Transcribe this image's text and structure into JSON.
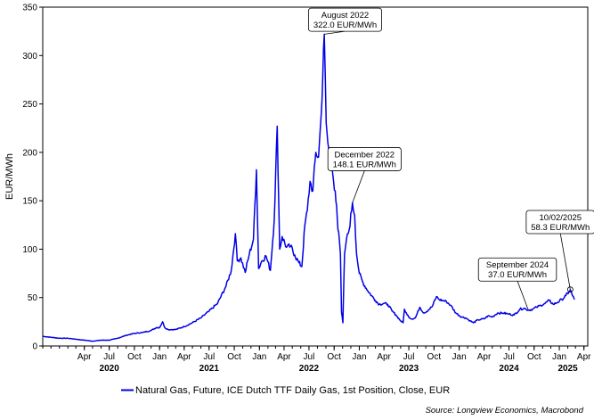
{
  "chart_data": {
    "type": "line",
    "title": "",
    "ylabel": "EUR/MWh",
    "xlabel": "",
    "ylim": [
      0,
      350
    ],
    "yticks": [
      0,
      50,
      100,
      150,
      200,
      250,
      300,
      350
    ],
    "x_range": [
      "2019-11-01",
      "2025-04-15"
    ],
    "month_ticks": [
      {
        "date": "2020-04-01",
        "label": "Apr"
      },
      {
        "date": "2020-07-01",
        "label": "Jul"
      },
      {
        "date": "2020-10-01",
        "label": "Oct"
      },
      {
        "date": "2021-01-01",
        "label": "Jan"
      },
      {
        "date": "2021-04-01",
        "label": "Apr"
      },
      {
        "date": "2021-07-01",
        "label": "Jul"
      },
      {
        "date": "2021-10-01",
        "label": "Oct"
      },
      {
        "date": "2022-01-01",
        "label": "Jan"
      },
      {
        "date": "2022-04-01",
        "label": "Apr"
      },
      {
        "date": "2022-07-01",
        "label": "Jul"
      },
      {
        "date": "2022-10-01",
        "label": "Oct"
      },
      {
        "date": "2023-01-01",
        "label": "Jan"
      },
      {
        "date": "2023-04-01",
        "label": "Apr"
      },
      {
        "date": "2023-07-01",
        "label": "Jul"
      },
      {
        "date": "2023-10-01",
        "label": "Oct"
      },
      {
        "date": "2024-01-01",
        "label": "Jan"
      },
      {
        "date": "2024-04-01",
        "label": "Apr"
      },
      {
        "date": "2024-07-01",
        "label": "Jul"
      },
      {
        "date": "2024-10-01",
        "label": "Oct"
      },
      {
        "date": "2025-01-01",
        "label": "Jan"
      },
      {
        "date": "2025-04-01",
        "label": "Apr"
      }
    ],
    "year_labels": [
      {
        "date": "2020-07-01",
        "label": "2020"
      },
      {
        "date": "2021-07-01",
        "label": "2021"
      },
      {
        "date": "2022-07-01",
        "label": "2022"
      },
      {
        "date": "2023-07-01",
        "label": "2023"
      },
      {
        "date": "2024-07-01",
        "label": "2024"
      },
      {
        "date": "2025-02-01",
        "label": "2025"
      }
    ],
    "series": [
      {
        "name": "Natural Gas, Future, ICE Dutch TTF Daily Gas, 1st Position, Close, EUR",
        "color": "#0000e6",
        "points": [
          [
            "2019-11-01",
            10
          ],
          [
            "2019-12-01",
            9
          ],
          [
            "2020-01-01",
            8
          ],
          [
            "2020-02-01",
            8
          ],
          [
            "2020-03-01",
            7
          ],
          [
            "2020-04-01",
            6
          ],
          [
            "2020-05-01",
            5
          ],
          [
            "2020-06-01",
            6
          ],
          [
            "2020-07-01",
            6
          ],
          [
            "2020-08-01",
            8
          ],
          [
            "2020-09-01",
            11
          ],
          [
            "2020-10-01",
            13
          ],
          [
            "2020-11-01",
            14
          ],
          [
            "2020-12-01",
            16
          ],
          [
            "2020-12-20",
            19
          ],
          [
            "2021-01-01",
            19
          ],
          [
            "2021-01-12",
            25
          ],
          [
            "2021-01-20",
            19
          ],
          [
            "2021-02-01",
            17
          ],
          [
            "2021-03-01",
            17
          ],
          [
            "2021-04-01",
            20
          ],
          [
            "2021-05-01",
            24
          ],
          [
            "2021-06-01",
            29
          ],
          [
            "2021-07-01",
            36
          ],
          [
            "2021-08-01",
            44
          ],
          [
            "2021-09-01",
            62
          ],
          [
            "2021-09-20",
            78
          ],
          [
            "2021-10-05",
            116
          ],
          [
            "2021-10-12",
            88
          ],
          [
            "2021-10-25",
            91
          ],
          [
            "2021-11-10",
            76
          ],
          [
            "2021-11-25",
            95
          ],
          [
            "2021-12-10",
            110
          ],
          [
            "2021-12-21",
            182
          ],
          [
            "2021-12-29",
            80
          ],
          [
            "2022-01-10",
            88
          ],
          [
            "2022-01-25",
            93
          ],
          [
            "2022-02-10",
            78
          ],
          [
            "2022-02-24",
            130
          ],
          [
            "2022-03-07",
            227
          ],
          [
            "2022-03-16",
            100
          ],
          [
            "2022-03-25",
            113
          ],
          [
            "2022-04-10",
            102
          ],
          [
            "2022-04-25",
            103
          ],
          [
            "2022-05-10",
            94
          ],
          [
            "2022-05-25",
            86
          ],
          [
            "2022-06-05",
            82
          ],
          [
            "2022-06-16",
            125
          ],
          [
            "2022-06-25",
            140
          ],
          [
            "2022-07-05",
            170
          ],
          [
            "2022-07-15",
            160
          ],
          [
            "2022-07-26",
            200
          ],
          [
            "2022-08-05",
            195
          ],
          [
            "2022-08-15",
            240
          ],
          [
            "2022-08-26",
            322
          ],
          [
            "2022-09-02",
            230
          ],
          [
            "2022-09-08",
            210
          ],
          [
            "2022-09-15",
            195
          ],
          [
            "2022-09-22",
            190
          ],
          [
            "2022-09-29",
            170
          ],
          [
            "2022-10-05",
            160
          ],
          [
            "2022-10-10",
            145
          ],
          [
            "2022-10-15",
            120
          ],
          [
            "2022-10-20",
            110
          ],
          [
            "2022-10-24",
            95
          ],
          [
            "2022-10-28",
            35
          ],
          [
            "2022-11-02",
            24
          ],
          [
            "2022-11-08",
            95
          ],
          [
            "2022-11-15",
            110
          ],
          [
            "2022-11-25",
            120
          ],
          [
            "2022-12-07",
            148
          ],
          [
            "2022-12-15",
            135
          ],
          [
            "2022-12-22",
            95
          ],
          [
            "2023-01-01",
            75
          ],
          [
            "2023-01-15",
            65
          ],
          [
            "2023-02-01",
            57
          ],
          [
            "2023-02-15",
            52
          ],
          [
            "2023-03-01",
            47
          ],
          [
            "2023-03-15",
            43
          ],
          [
            "2023-04-01",
            44
          ],
          [
            "2023-04-15",
            43
          ],
          [
            "2023-05-01",
            36
          ],
          [
            "2023-05-15",
            32
          ],
          [
            "2023-06-01",
            26
          ],
          [
            "2023-06-10",
            24
          ],
          [
            "2023-06-15",
            38
          ],
          [
            "2023-06-25",
            32
          ],
          [
            "2023-07-10",
            28
          ],
          [
            "2023-07-25",
            29
          ],
          [
            "2023-08-10",
            40
          ],
          [
            "2023-08-25",
            34
          ],
          [
            "2023-09-10",
            37
          ],
          [
            "2023-09-25",
            41
          ],
          [
            "2023-10-10",
            51
          ],
          [
            "2023-10-20",
            48
          ],
          [
            "2023-11-01",
            47
          ],
          [
            "2023-11-15",
            46
          ],
          [
            "2023-12-01",
            42
          ],
          [
            "2023-12-20",
            34
          ],
          [
            "2024-01-10",
            30
          ],
          [
            "2024-01-25",
            29
          ],
          [
            "2024-02-10",
            26
          ],
          [
            "2024-02-22",
            24
          ],
          [
            "2024-03-10",
            27
          ],
          [
            "2024-04-01",
            28
          ],
          [
            "2024-04-15",
            31
          ],
          [
            "2024-05-01",
            30
          ],
          [
            "2024-05-20",
            34
          ],
          [
            "2024-06-10",
            34
          ],
          [
            "2024-07-01",
            33
          ],
          [
            "2024-07-20",
            32
          ],
          [
            "2024-08-10",
            38
          ],
          [
            "2024-08-25",
            39
          ],
          [
            "2024-09-10",
            37
          ],
          [
            "2024-09-25",
            38
          ],
          [
            "2024-10-10",
            40
          ],
          [
            "2024-10-25",
            42
          ],
          [
            "2024-11-10",
            44
          ],
          [
            "2024-11-25",
            47
          ],
          [
            "2024-12-10",
            43
          ],
          [
            "2024-12-25",
            45
          ],
          [
            "2025-01-10",
            48
          ],
          [
            "2025-01-25",
            52
          ],
          [
            "2025-02-05",
            56
          ],
          [
            "2025-02-10",
            58
          ],
          [
            "2025-02-18",
            52
          ],
          [
            "2025-02-25",
            48
          ]
        ]
      }
    ],
    "annotations": [
      {
        "lines": [
          "August 2022",
          "322.0 EUR/MWh"
        ],
        "point": [
          "2022-08-26",
          322.0
        ],
        "box_at": [
          "2022-11-10",
          337
        ],
        "marker": false
      },
      {
        "lines": [
          "December 2022",
          "148.1 EUR/MWh"
        ],
        "point": [
          "2022-12-07",
          148.1
        ],
        "box_at": [
          "2023-01-20",
          193
        ],
        "marker": false
      },
      {
        "lines": [
          "September 2024",
          "37.0 EUR/MWh"
        ],
        "point": [
          "2024-09-10",
          37.0
        ],
        "box_at": [
          "2024-08-01",
          79
        ],
        "marker": false
      },
      {
        "lines": [
          "10/02/2025",
          "58.3 EUR/MWh"
        ],
        "point": [
          "2025-02-10",
          58.3
        ],
        "box_at": [
          "2025-01-05",
          128
        ],
        "marker": true
      }
    ],
    "legend_position": "bottom",
    "grid": false
  },
  "legend": {
    "label": "Natural Gas, Future, ICE Dutch TTF Daily Gas, 1st Position, Close, EUR"
  },
  "source": "Source: Longview Economics, Macrobond"
}
